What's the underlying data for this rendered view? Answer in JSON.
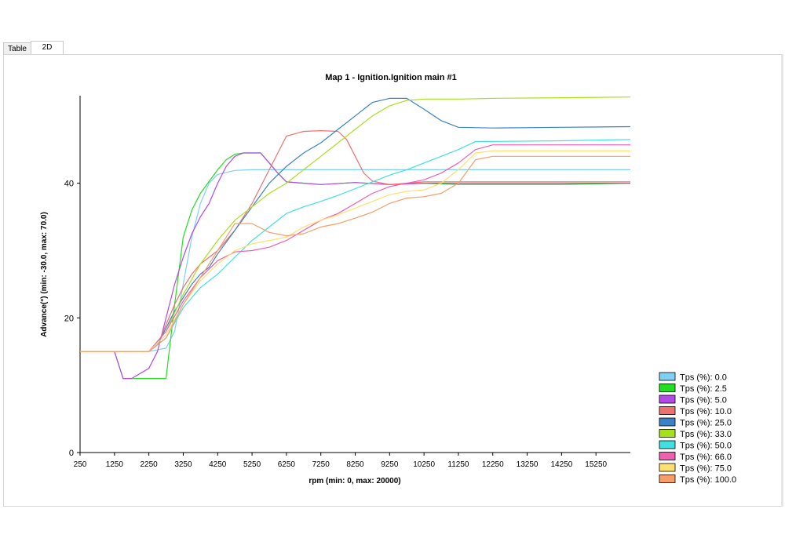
{
  "tabs": [
    {
      "label": "Table"
    },
    {
      "label": "2D"
    }
  ],
  "chart_data": {
    "type": "line",
    "title": "Map 1 - Ignition.Ignition main #1",
    "xlabel": "rpm (min: 0, max: 20000)",
    "ylabel": "Advance(°) (min: -30.0, max: 70.0)",
    "xlim": [
      250,
      16250
    ],
    "ylim": [
      0,
      53
    ],
    "x_ticks": [
      250,
      1250,
      2250,
      3250,
      4250,
      5250,
      6250,
      7250,
      8250,
      9250,
      10250,
      11250,
      12250,
      13250,
      14250,
      15250
    ],
    "y_ticks": [
      0,
      20,
      40
    ],
    "grid": false,
    "legend_position": "bottom-right",
    "series": [
      {
        "name": "Tps (%): 0.0",
        "color": "#7fd0f5",
        "points": [
          [
            250,
            15
          ],
          [
            1250,
            15
          ],
          [
            2250,
            15
          ],
          [
            2750,
            15.5
          ],
          [
            3000,
            18
          ],
          [
            3250,
            25
          ],
          [
            3500,
            32
          ],
          [
            3750,
            37
          ],
          [
            4000,
            40
          ],
          [
            4250,
            41.3
          ],
          [
            4750,
            41.9
          ],
          [
            5250,
            42
          ],
          [
            6250,
            42
          ],
          [
            8250,
            42
          ],
          [
            10250,
            42
          ],
          [
            12250,
            42
          ],
          [
            14250,
            42
          ],
          [
            16250,
            42
          ]
        ]
      },
      {
        "name": "Tps (%): 2.5",
        "color": "#22dd22",
        "points": [
          [
            250,
            15
          ],
          [
            1250,
            15
          ],
          [
            1500,
            11
          ],
          [
            2250,
            11
          ],
          [
            2750,
            11
          ],
          [
            3000,
            22
          ],
          [
            3250,
            32
          ],
          [
            3500,
            36
          ],
          [
            3750,
            38.5
          ],
          [
            4250,
            42
          ],
          [
            4500,
            43.5
          ],
          [
            4750,
            44.3
          ],
          [
            5000,
            44.5
          ],
          [
            5500,
            44.5
          ],
          [
            5750,
            43
          ],
          [
            6000,
            41.5
          ],
          [
            6250,
            40.2
          ],
          [
            7250,
            39.8
          ],
          [
            8250,
            40.1
          ],
          [
            9250,
            39.8
          ],
          [
            10250,
            40
          ],
          [
            11250,
            39.8
          ],
          [
            12250,
            39.8
          ],
          [
            14250,
            39.8
          ],
          [
            16250,
            40
          ]
        ]
      },
      {
        "name": "Tps (%): 5.0",
        "color": "#b44ae6",
        "points": [
          [
            250,
            15
          ],
          [
            1250,
            15
          ],
          [
            1500,
            11
          ],
          [
            1750,
            11
          ],
          [
            2250,
            12.5
          ],
          [
            2500,
            15
          ],
          [
            2750,
            20
          ],
          [
            3000,
            25
          ],
          [
            3250,
            29
          ],
          [
            3500,
            32.5
          ],
          [
            3750,
            35
          ],
          [
            4000,
            37
          ],
          [
            4250,
            40
          ],
          [
            4500,
            42.5
          ],
          [
            4750,
            44
          ],
          [
            5000,
            44.5
          ],
          [
            5500,
            44.5
          ],
          [
            5750,
            43
          ],
          [
            6000,
            41.5
          ],
          [
            6250,
            40.2
          ],
          [
            7250,
            39.8
          ],
          [
            8250,
            40.1
          ],
          [
            9250,
            39.8
          ],
          [
            10250,
            40
          ],
          [
            11250,
            40
          ],
          [
            12250,
            40
          ],
          [
            14250,
            40
          ],
          [
            16250,
            40
          ]
        ]
      },
      {
        "name": "Tps (%): 10.0",
        "color": "#f07070",
        "points": [
          [
            250,
            15
          ],
          [
            1250,
            15
          ],
          [
            2250,
            15
          ],
          [
            2500,
            16
          ],
          [
            2750,
            19
          ],
          [
            3000,
            22
          ],
          [
            3250,
            24.5
          ],
          [
            3500,
            26.5
          ],
          [
            3750,
            28
          ],
          [
            4250,
            30
          ],
          [
            4750,
            33
          ],
          [
            5250,
            37
          ],
          [
            5750,
            42
          ],
          [
            6250,
            47
          ],
          [
            6750,
            47.7
          ],
          [
            7250,
            47.8
          ],
          [
            7750,
            47.7
          ],
          [
            8000,
            46.5
          ],
          [
            8250,
            44
          ],
          [
            8500,
            41.5
          ],
          [
            8750,
            40.3
          ],
          [
            9250,
            39.8
          ],
          [
            10250,
            40.2
          ],
          [
            11250,
            40.2
          ],
          [
            12250,
            40.2
          ],
          [
            14250,
            40.2
          ],
          [
            16250,
            40.2
          ]
        ]
      },
      {
        "name": "Tps (%): 25.0",
        "color": "#3a82c8",
        "points": [
          [
            250,
            15
          ],
          [
            1250,
            15
          ],
          [
            2250,
            15
          ],
          [
            2500,
            16
          ],
          [
            2750,
            18.5
          ],
          [
            3000,
            21
          ],
          [
            3250,
            23
          ],
          [
            3500,
            25
          ],
          [
            3750,
            26.5
          ],
          [
            4000,
            27.5
          ],
          [
            4250,
            29.5
          ],
          [
            4750,
            33
          ],
          [
            5250,
            36.5
          ],
          [
            5750,
            40
          ],
          [
            6250,
            42.5
          ],
          [
            6750,
            44.5
          ],
          [
            7250,
            46
          ],
          [
            7750,
            48
          ],
          [
            8250,
            50
          ],
          [
            8750,
            52
          ],
          [
            9250,
            52.6
          ],
          [
            9750,
            52.6
          ],
          [
            10250,
            51
          ],
          [
            10750,
            49.3
          ],
          [
            11250,
            48.3
          ],
          [
            12250,
            48.2
          ],
          [
            14250,
            48.3
          ],
          [
            16250,
            48.4
          ]
        ]
      },
      {
        "name": "Tps (%): 33.0",
        "color": "#a8e020",
        "points": [
          [
            250,
            15
          ],
          [
            1250,
            15
          ],
          [
            2250,
            15
          ],
          [
            2750,
            18
          ],
          [
            3250,
            23.5
          ],
          [
            3750,
            28
          ],
          [
            4250,
            31.5
          ],
          [
            4750,
            34.5
          ],
          [
            5250,
            36.5
          ],
          [
            5750,
            38.5
          ],
          [
            6250,
            40
          ],
          [
            6750,
            42
          ],
          [
            7250,
            44
          ],
          [
            7750,
            46
          ],
          [
            8250,
            48
          ],
          [
            8750,
            50
          ],
          [
            9250,
            51.5
          ],
          [
            9750,
            52.3
          ],
          [
            10250,
            52.5
          ],
          [
            11250,
            52.5
          ],
          [
            12250,
            52.6
          ],
          [
            14250,
            52.7
          ],
          [
            16250,
            52.8
          ]
        ]
      },
      {
        "name": "Tps (%): 50.0",
        "color": "#40e0e0",
        "points": [
          [
            250,
            15
          ],
          [
            1250,
            15
          ],
          [
            2250,
            15
          ],
          [
            2750,
            17
          ],
          [
            3250,
            21.5
          ],
          [
            3750,
            24.5
          ],
          [
            4250,
            26.5
          ],
          [
            4750,
            29
          ],
          [
            5250,
            31.5
          ],
          [
            5750,
            33.5
          ],
          [
            6250,
            35.5
          ],
          [
            6750,
            36.5
          ],
          [
            7250,
            37.3
          ],
          [
            7750,
            38.2
          ],
          [
            8250,
            39.2
          ],
          [
            8750,
            40.2
          ],
          [
            9250,
            41.2
          ],
          [
            9750,
            42
          ],
          [
            10250,
            43
          ],
          [
            10750,
            44
          ],
          [
            11250,
            45
          ],
          [
            11750,
            46.2
          ],
          [
            12250,
            46.2
          ],
          [
            14250,
            46.3
          ],
          [
            16250,
            46.5
          ]
        ]
      },
      {
        "name": "Tps (%): 66.0",
        "color": "#f060b0",
        "points": [
          [
            250,
            15
          ],
          [
            1250,
            15
          ],
          [
            2250,
            15
          ],
          [
            2750,
            18
          ],
          [
            3250,
            22.5
          ],
          [
            3750,
            26
          ],
          [
            4250,
            28.5
          ],
          [
            4750,
            29.8
          ],
          [
            5250,
            30
          ],
          [
            5750,
            30.5
          ],
          [
            6250,
            31.5
          ],
          [
            6750,
            33
          ],
          [
            7250,
            34.5
          ],
          [
            7750,
            35.5
          ],
          [
            8250,
            37
          ],
          [
            8750,
            38.5
          ],
          [
            9250,
            39.5
          ],
          [
            9750,
            40
          ],
          [
            10250,
            40.5
          ],
          [
            10750,
            41.5
          ],
          [
            11250,
            43
          ],
          [
            11750,
            45
          ],
          [
            12250,
            45.7
          ],
          [
            14250,
            45.7
          ],
          [
            16250,
            45.7
          ]
        ]
      },
      {
        "name": "Tps (%): 75.0",
        "color": "#ffe070",
        "points": [
          [
            250,
            15
          ],
          [
            1250,
            15
          ],
          [
            2250,
            15
          ],
          [
            2750,
            17.5
          ],
          [
            3250,
            22
          ],
          [
            3750,
            25.5
          ],
          [
            4250,
            28
          ],
          [
            4750,
            30
          ],
          [
            5250,
            31
          ],
          [
            5750,
            31.5
          ],
          [
            6250,
            32
          ],
          [
            6750,
            33.5
          ],
          [
            7250,
            34.5
          ],
          [
            7750,
            35.3
          ],
          [
            8250,
            36.3
          ],
          [
            8750,
            37.3
          ],
          [
            9250,
            38.3
          ],
          [
            9750,
            38.8
          ],
          [
            10250,
            39
          ],
          [
            10750,
            40
          ],
          [
            11250,
            42
          ],
          [
            11750,
            44.5
          ],
          [
            12250,
            44.8
          ],
          [
            14250,
            44.8
          ],
          [
            16250,
            44.8
          ]
        ]
      },
      {
        "name": "Tps (%): 100.0",
        "color": "#f59e6a",
        "points": [
          [
            250,
            15
          ],
          [
            1250,
            15
          ],
          [
            2250,
            15
          ],
          [
            2750,
            17
          ],
          [
            3250,
            22
          ],
          [
            3750,
            26
          ],
          [
            4250,
            30
          ],
          [
            4750,
            34
          ],
          [
            5250,
            34
          ],
          [
            5750,
            32.7
          ],
          [
            6250,
            32.2
          ],
          [
            6750,
            32.5
          ],
          [
            7250,
            33.5
          ],
          [
            7750,
            34
          ],
          [
            8250,
            34.8
          ],
          [
            8750,
            35.7
          ],
          [
            9250,
            37
          ],
          [
            9750,
            37.8
          ],
          [
            10250,
            38
          ],
          [
            10750,
            38.5
          ],
          [
            11250,
            40
          ],
          [
            11750,
            43.5
          ],
          [
            12250,
            44
          ],
          [
            14250,
            44
          ],
          [
            16250,
            44
          ]
        ]
      }
    ]
  }
}
